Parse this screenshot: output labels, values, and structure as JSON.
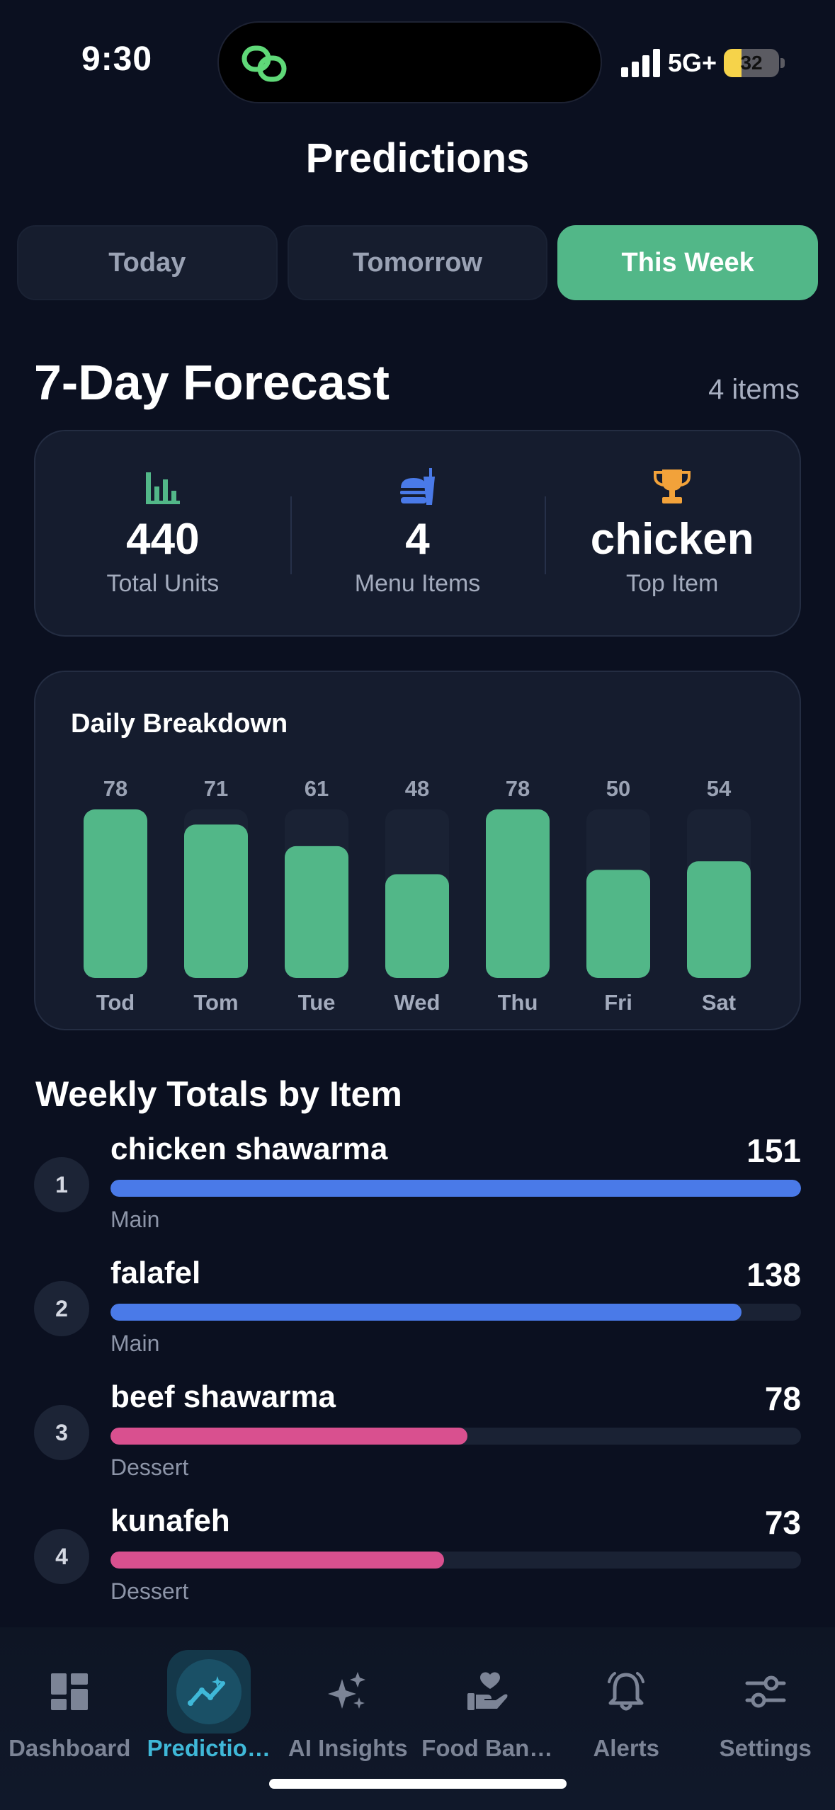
{
  "status_bar": {
    "time": "9:30",
    "network": "5G+",
    "battery_percent": "32",
    "battery_level": 0.32
  },
  "header": {
    "title": "Predictions"
  },
  "tabs": [
    {
      "label": "Today",
      "active": false
    },
    {
      "label": "Tomorrow",
      "active": false
    },
    {
      "label": "This Week",
      "active": true
    }
  ],
  "forecast": {
    "title": "7-Day Forecast",
    "count_label": "4 items",
    "stats": [
      {
        "icon": "bar-chart-icon",
        "value": "440",
        "label": "Total Units",
        "color": "#52b788"
      },
      {
        "icon": "fast-food-icon",
        "value": "4",
        "label": "Menu Items",
        "color": "#4a7ae8"
      },
      {
        "icon": "trophy-icon",
        "value": "chicken",
        "label": "Top Item",
        "color": "#f2a23a"
      }
    ]
  },
  "daily_breakdown": {
    "title": "Daily Breakdown",
    "colors": {
      "bar": "#52b788",
      "track": "#1a2234",
      "value_label": "#9aa2b4",
      "day_label": "#a3abbd"
    }
  },
  "chart_data": {
    "type": "bar",
    "title": "Daily Breakdown",
    "categories": [
      "Tod",
      "Tom",
      "Tue",
      "Wed",
      "Thu",
      "Fri",
      "Sat"
    ],
    "values": [
      78,
      71,
      61,
      48,
      78,
      50,
      54
    ],
    "ylim": [
      0,
      78
    ],
    "grid": false,
    "xlabel": "",
    "ylabel": ""
  },
  "weekly_totals": {
    "title": "Weekly Totals by Item",
    "max": 151,
    "items": [
      {
        "rank": "1",
        "name": "chicken shawarma",
        "total": 151,
        "category": "Main",
        "color": "#4a7ae8"
      },
      {
        "rank": "2",
        "name": "falafel",
        "total": 138,
        "category": "Main",
        "color": "#4a7ae8"
      },
      {
        "rank": "3",
        "name": "beef shawarma",
        "total": 78,
        "category": "Dessert",
        "color": "#d9508f"
      },
      {
        "rank": "4",
        "name": "kunafeh",
        "total": 73,
        "category": "Dessert",
        "color": "#d9508f"
      }
    ]
  },
  "tab_bar": {
    "items": [
      {
        "label": "Dashboard",
        "icon": "dashboard-icon",
        "active": false
      },
      {
        "label": "Predictio…",
        "icon": "trend-icon",
        "active": true
      },
      {
        "label": "AI Insights",
        "icon": "sparkles-icon",
        "active": false
      },
      {
        "label": "Food Ban…",
        "icon": "donation-hand-icon",
        "active": false
      },
      {
        "label": "Alerts",
        "icon": "bell-icon",
        "active": false
      },
      {
        "label": "Settings",
        "icon": "sliders-icon",
        "active": false
      }
    ]
  }
}
